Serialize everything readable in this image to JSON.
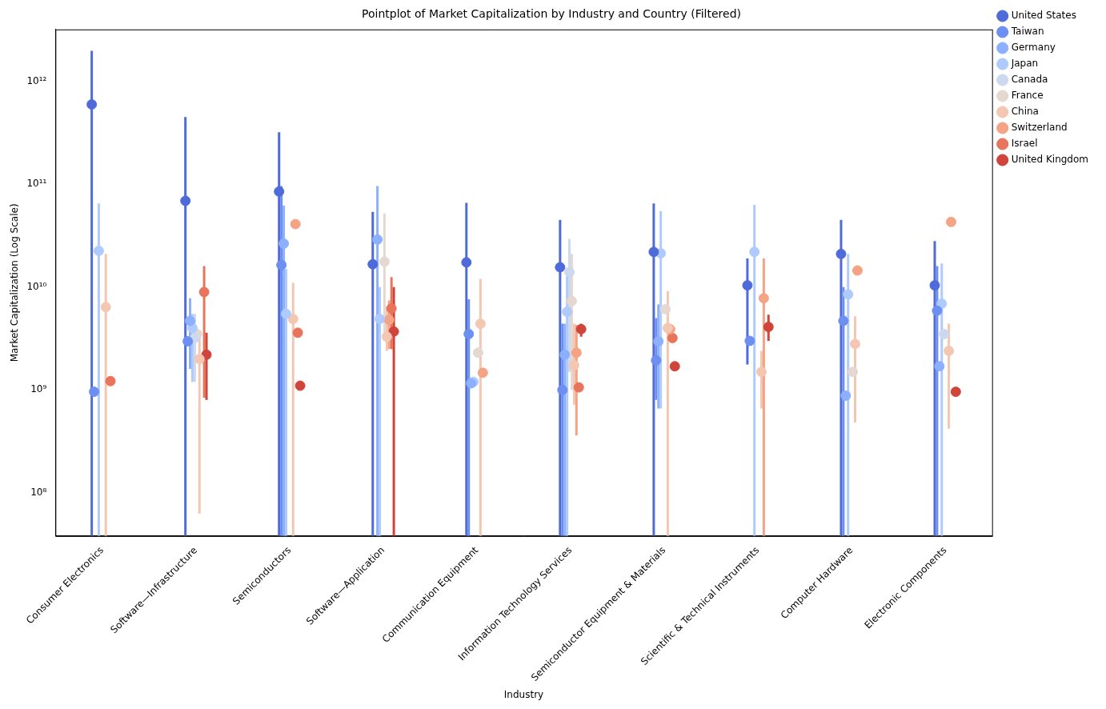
{
  "chart_data": {
    "type": "pointplot",
    "title": "Pointplot of Market Capitalization by Industry and Country (Filtered)",
    "x_label": "Industry",
    "y_label": "Market Capitalization (Log Scale)",
    "categories": [
      "Consumer Electronics",
      "Software—Infrastructure",
      "Semiconductors",
      "Software—Application",
      "Communication Equipment",
      "Information Technology Services",
      "Semiconductor Equipment & Materials",
      "Scientific & Technical Instruments",
      "Computer Hardware",
      "Electronic Components"
    ],
    "log": "y",
    "grid": false,
    "legend": "right",
    "marker": "o",
    "ylim": [
      38000000,
      3200000000000
    ],
    "yticks": [
      {
        "value": 100000000,
        "label": "10⁸"
      },
      {
        "value": 1000000000,
        "label": "10⁹"
      },
      {
        "value": 10000000000,
        "label": "10¹⁰"
      },
      {
        "value": 100000000000,
        "label": "10¹¹"
      },
      {
        "value": 1000000000000,
        "label": "10¹²"
      }
    ],
    "series": [
      {
        "name": "United States",
        "color": "#4f6bd9",
        "values": [
          597000000000,
          69000000000,
          85000000000,
          16700000000,
          17400000000,
          15600000000,
          22000000000,
          10400000000,
          21000000000,
          10400000000
        ],
        "ci_low": [
          10000000,
          10000000,
          10000000,
          10000000,
          10000000,
          10000000,
          10000000,
          1770000000,
          10000000,
          10000000
        ],
        "ci_high": [
          1980000000000,
          450000000000,
          320000000000,
          54000000000,
          66000000000,
          45000000000,
          65000000000,
          19000000000,
          45000000000,
          28000000000
        ]
      },
      {
        "name": "Taiwan",
        "color": "#6c8ff1",
        "values": [
          960000000,
          2970000000,
          16400000000,
          null,
          3500000000,
          1000000000,
          1940000000,
          3000000000,
          4700000000,
          5900000000
        ],
        "ci_low": [
          null,
          null,
          10000000,
          null,
          10000000,
          10000000,
          800000000,
          2800000000,
          10000000,
          10000000
        ],
        "ci_high": [
          null,
          null,
          96000000000,
          null,
          7600000000,
          4400000000,
          5000000000,
          3200000000,
          10000000000,
          16000000000
        ]
      },
      {
        "name": "Germany",
        "color": "#8db0fe",
        "values": [
          null,
          4700000000,
          26500000000,
          29000000000,
          1160000000,
          2200000000,
          2970000000,
          null,
          880000000,
          1700000000
        ],
        "ci_low": [
          null,
          1600000000,
          10000000,
          10000000,
          null,
          10000000,
          660000000,
          null,
          null,
          null
        ],
        "ci_high": [
          null,
          7800000000,
          62000000000,
          96000000000,
          null,
          4400000000,
          6800000000,
          null,
          null,
          null
        ]
      },
      {
        "name": "Japan",
        "color": "#afcafc",
        "values": [
          22500000000,
          4000000000,
          5500000000,
          4900000000,
          1200000000,
          5750000000,
          21300000000,
          22000000000,
          8500000000,
          6900000000
        ],
        "ci_low": [
          10000000,
          1200000000,
          10000000,
          10000000,
          null,
          10000000,
          660000000,
          10000000,
          10000000,
          10000000
        ],
        "ci_high": [
          65000000000,
          5500000000,
          15000000000,
          10000000000,
          null,
          14000000000,
          55000000000,
          63000000000,
          21000000000,
          17000000000
        ]
      },
      {
        "name": "Canada",
        "color": "#cbd8ee",
        "values": [
          null,
          3200000000,
          null,
          null,
          null,
          14000000000,
          null,
          null,
          null,
          3500000000
        ],
        "ci_low": [
          null,
          1200000000,
          null,
          null,
          null,
          1500000000,
          null,
          null,
          null,
          null
        ],
        "ci_high": [
          null,
          5500000000,
          null,
          null,
          null,
          29500000000,
          null,
          null,
          null,
          null
        ]
      },
      {
        "name": "France",
        "color": "#e5d8d1",
        "values": [
          null,
          3500000000,
          null,
          17700000000,
          2300000000,
          7300000000,
          6100000000,
          null,
          1500000000,
          null
        ],
        "ci_low": [
          null,
          null,
          null,
          3600000000,
          null,
          1000000000,
          null,
          null,
          null,
          null
        ],
        "ci_high": [
          null,
          null,
          null,
          52000000000,
          null,
          21000000000,
          null,
          null,
          null,
          null
        ]
      },
      {
        "name": "China",
        "color": "#f3c7b1",
        "values": [
          6400000000,
          2000000000,
          4900000000,
          3300000000,
          4400000000,
          1740000000,
          4000000000,
          1500000000,
          2800000000,
          2400000000
        ],
        "ci_low": [
          10000000,
          63000000,
          10000000,
          2400000000,
          10000000,
          720000000,
          10000000,
          660000000,
          480000000,
          420000000
        ],
        "ci_high": [
          21000000000,
          3800000000,
          11000000000,
          6500000000,
          12000000000,
          4400000000,
          9100000000,
          2400000000,
          5200000000,
          4400000000
        ]
      },
      {
        "name": "Switzerland",
        "color": "#f4a384",
        "values": [
          null,
          null,
          41000000000,
          4800000000,
          1470000000,
          2300000000,
          3900000000,
          7800000000,
          14500000000,
          43000000000
        ],
        "ci_low": [
          null,
          null,
          null,
          2500000000,
          null,
          360000000,
          null,
          10000000,
          null,
          null
        ],
        "ci_high": [
          null,
          null,
          null,
          7400000000,
          null,
          4300000000,
          null,
          19000000000,
          null,
          null
        ]
      },
      {
        "name": "Israel",
        "color": "#e7745b",
        "values": [
          1220000000,
          8960000000,
          3600000000,
          6200000000,
          null,
          1060000000,
          3200000000,
          null,
          null,
          null
        ],
        "ci_low": [
          null,
          840000000,
          null,
          2500000000,
          null,
          null,
          null,
          null,
          null,
          null
        ],
        "ci_high": [
          null,
          16000000000,
          null,
          12500000000,
          null,
          null,
          null,
          null,
          null,
          null
        ]
      },
      {
        "name": "United Kingdom",
        "color": "#cf453c",
        "values": [
          null,
          2200000000,
          1100000000,
          3700000000,
          null,
          3900000000,
          1700000000,
          4100000000,
          null,
          960000000
        ],
        "ci_low": [
          null,
          800000000,
          null,
          10000000,
          null,
          3300000000,
          null,
          3000000000,
          null,
          null
        ],
        "ci_high": [
          null,
          3600000000,
          null,
          10000000000,
          null,
          4400000000,
          null,
          5400000000,
          null,
          null
        ]
      }
    ]
  }
}
